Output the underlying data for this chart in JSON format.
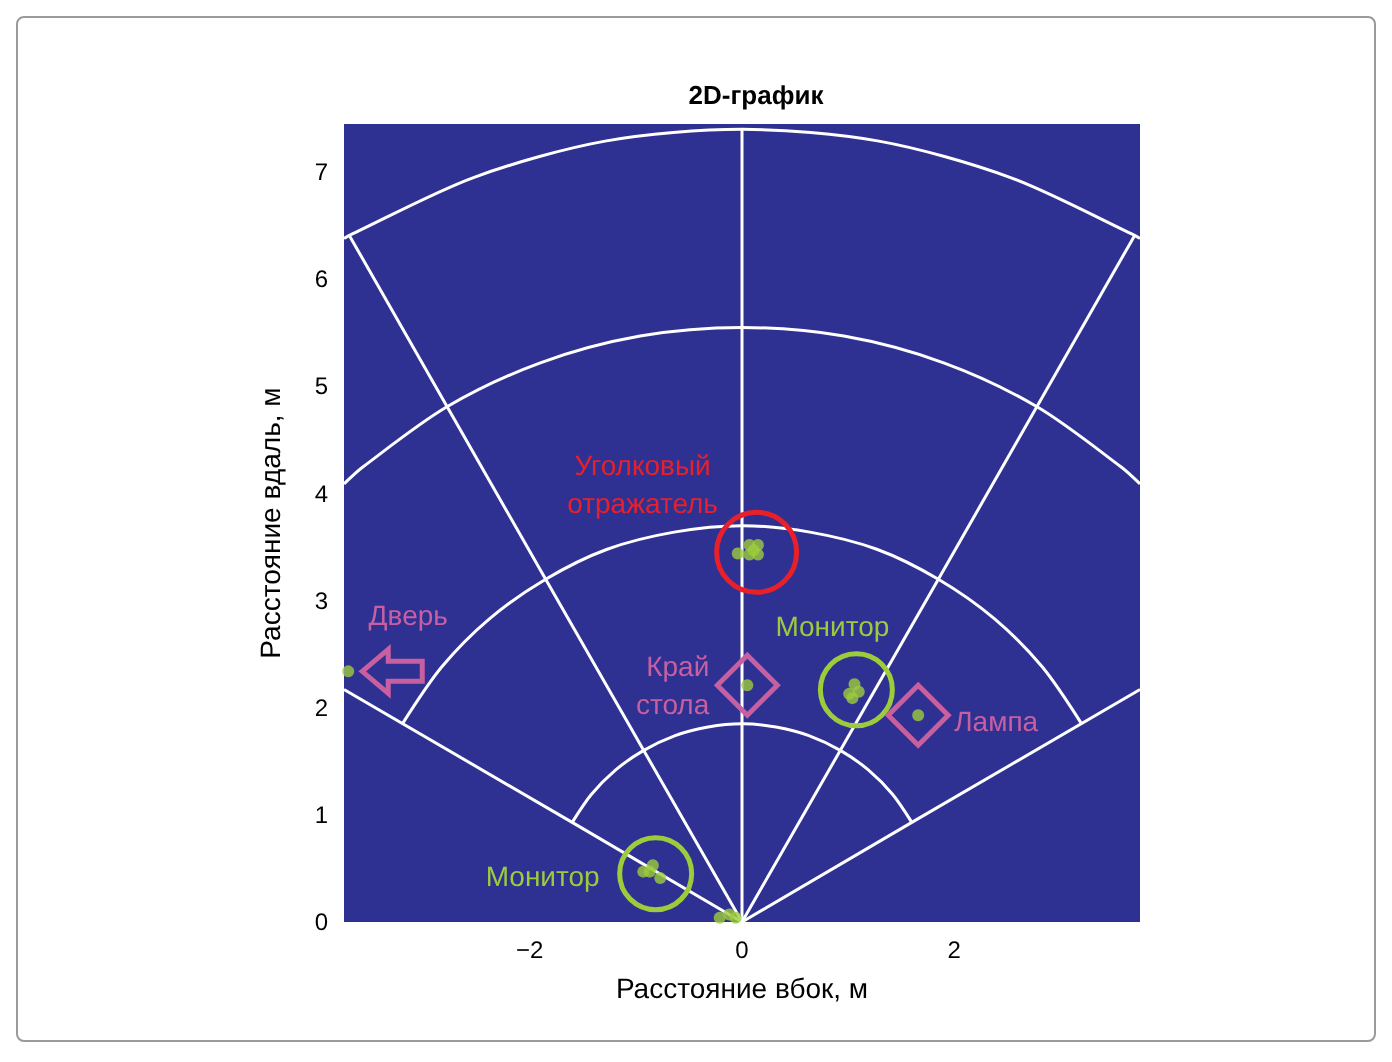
{
  "chart_data": {
    "type": "scatter",
    "title": "2D-график",
    "xlabel": "Расстояние вбок, м",
    "ylabel": "Расстояние вдаль, м",
    "xlim": [
      -3.75,
      3.75
    ],
    "xticks": [
      -2,
      0,
      2
    ],
    "ylim": [
      0,
      7.45
    ],
    "yticks": [
      0,
      1,
      2,
      3,
      4,
      5,
      6,
      7
    ],
    "grid": false,
    "marker": "circle",
    "series": [
      {
        "color": "#9ccc3c",
        "x": [
          0.07,
          0.15,
          0.07,
          0.15,
          0.11,
          -0.04,
          -3.71,
          0.05,
          1.06,
          1.01,
          1.1,
          1.04,
          1.66,
          -0.93,
          -0.84,
          -0.77,
          -0.87,
          -0.21,
          -0.12,
          -0.06
        ],
        "values": [
          3.52,
          3.52,
          3.43,
          3.43,
          3.47,
          3.44,
          2.34,
          2.21,
          2.22,
          2.13,
          2.15,
          2.09,
          1.93,
          0.47,
          0.53,
          0.41,
          0.47,
          0.04,
          0.07,
          0.04
        ]
      },
      {
        "type": "line",
        "color": "#ffffff",
        "marker": "none",
        "x": [
          -1.6,
          -1.42,
          -1.19,
          -0.93,
          -0.63,
          -0.32,
          0,
          0.32,
          0.63,
          0.93,
          1.19,
          1.42,
          1.6
        ],
        "values": [
          0.93,
          1.19,
          1.42,
          1.6,
          1.74,
          1.82,
          1.85,
          1.82,
          1.74,
          1.6,
          1.42,
          1.19,
          0.93
        ]
      },
      {
        "type": "line",
        "color": "#ffffff",
        "marker": "none",
        "x": [
          -3.2,
          -2.83,
          -2.38,
          -1.85,
          -1.27,
          -0.64,
          0,
          0.64,
          1.27,
          1.85,
          2.38,
          2.83,
          3.2
        ],
        "values": [
          1.85,
          2.38,
          2.83,
          3.2,
          3.48,
          3.64,
          3.7,
          3.64,
          3.48,
          3.2,
          2.83,
          2.38,
          1.85
        ]
      },
      {
        "type": "line",
        "color": "#ffffff",
        "marker": "none",
        "x": [
          -3.75,
          -3.57,
          -2.78,
          -1.9,
          -0.96,
          0,
          0.96,
          1.9,
          2.78,
          3.57,
          3.75
        ],
        "values": [
          4.09,
          4.25,
          4.81,
          5.22,
          5.47,
          5.55,
          5.47,
          5.22,
          4.81,
          4.25,
          4.09
        ]
      },
      {
        "type": "line",
        "color": "#ffffff",
        "marker": "none",
        "x": [
          -3.75,
          -3.7,
          -2.53,
          -1.29,
          0,
          1.29,
          2.53,
          3.7,
          3.75
        ],
        "values": [
          6.38,
          6.41,
          6.95,
          7.29,
          7.4,
          7.29,
          6.95,
          6.41,
          6.38
        ]
      },
      {
        "type": "line",
        "color": "#ffffff",
        "marker": "none",
        "x": [
          0,
          0,
          0
        ],
        "values": [
          0,
          3.7,
          7.4
        ]
      },
      {
        "type": "line",
        "color": "#ffffff",
        "marker": "none",
        "x": [
          0,
          -1.85,
          -3.7
        ],
        "values": [
          0,
          3.2,
          6.41
        ]
      },
      {
        "type": "line",
        "color": "#ffffff",
        "marker": "none",
        "x": [
          0,
          1.85,
          3.7
        ],
        "values": [
          0,
          3.2,
          6.41
        ]
      },
      {
        "type": "line",
        "color": "#ffffff",
        "marker": "none",
        "x": [
          0,
          -1.6,
          -3.75
        ],
        "values": [
          0,
          0.93,
          2.17
        ]
      },
      {
        "type": "line",
        "color": "#ffffff",
        "marker": "none",
        "x": [
          0,
          1.6,
          3.75
        ],
        "values": [
          0,
          0.93,
          2.17
        ]
      }
    ],
    "annotations": [
      {
        "text": "Уголковый отражатель",
        "x": 0.1,
        "y": 3.47
      },
      {
        "text": "Дверь",
        "x": -3.71,
        "y": 2.34
      },
      {
        "text": "Край стола",
        "x": 0.05,
        "y": 2.21
      },
      {
        "text": "Монитор",
        "x": 1.04,
        "y": 2.15
      },
      {
        "text": "Лампа",
        "x": 1.66,
        "y": 1.93
      },
      {
        "text": "Монитор",
        "x": -0.87,
        "y": 0.47
      }
    ]
  }
}
